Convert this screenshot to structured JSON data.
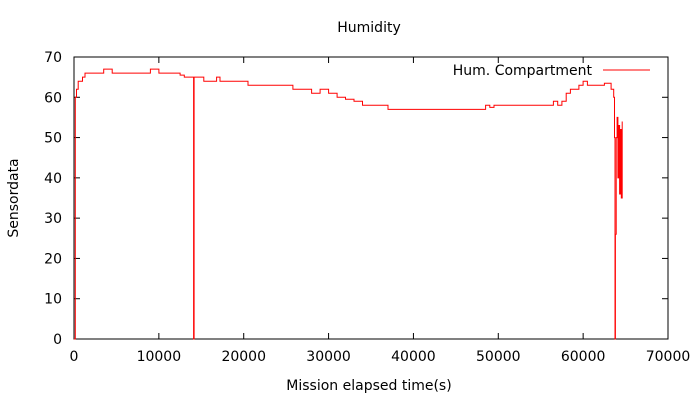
{
  "chart_data": {
    "type": "line",
    "title": "Humidity",
    "xlabel": "Mission elapsed time(s)",
    "ylabel": "Sensordata",
    "xlim": [
      0,
      70000
    ],
    "ylim": [
      0,
      70
    ],
    "xticks": [
      0,
      10000,
      20000,
      30000,
      40000,
      50000,
      60000,
      70000
    ],
    "yticks": [
      0,
      10,
      20,
      30,
      40,
      50,
      60,
      70
    ],
    "grid": false,
    "legend_position": "top-right",
    "series": [
      {
        "name": "Hum. Compartment",
        "color": "#ff0000",
        "points": [
          [
            0,
            0
          ],
          [
            150,
            60
          ],
          [
            300,
            62
          ],
          [
            500,
            64
          ],
          [
            1000,
            65
          ],
          [
            1300,
            66
          ],
          [
            3500,
            67
          ],
          [
            4500,
            66
          ],
          [
            9000,
            67
          ],
          [
            10000,
            66
          ],
          [
            12500,
            65.5
          ],
          [
            13000,
            65
          ],
          [
            14000,
            65
          ],
          [
            14100,
            0
          ],
          [
            14150,
            65
          ],
          [
            15000,
            65
          ],
          [
            15300,
            64
          ],
          [
            16800,
            65
          ],
          [
            17200,
            64
          ],
          [
            20500,
            63
          ],
          [
            25800,
            62
          ],
          [
            28000,
            61
          ],
          [
            29000,
            62
          ],
          [
            30000,
            61
          ],
          [
            31000,
            60
          ],
          [
            32000,
            59.5
          ],
          [
            33000,
            59
          ],
          [
            34000,
            58
          ],
          [
            37000,
            57
          ],
          [
            48500,
            58
          ],
          [
            49000,
            57.5
          ],
          [
            49500,
            58
          ],
          [
            56500,
            59
          ],
          [
            57000,
            58
          ],
          [
            57500,
            59
          ],
          [
            58000,
            61
          ],
          [
            58500,
            62
          ],
          [
            59500,
            63
          ],
          [
            60000,
            64
          ],
          [
            60500,
            63
          ],
          [
            62500,
            63.5
          ],
          [
            63300,
            62
          ],
          [
            63600,
            60
          ],
          [
            63700,
            50
          ],
          [
            63750,
            0
          ],
          [
            63800,
            26
          ],
          [
            63900,
            50
          ],
          [
            64000,
            55
          ],
          [
            64100,
            40
          ],
          [
            64200,
            53
          ],
          [
            64300,
            36
          ],
          [
            64400,
            52
          ],
          [
            64500,
            35
          ],
          [
            64600,
            54
          ]
        ]
      }
    ]
  }
}
